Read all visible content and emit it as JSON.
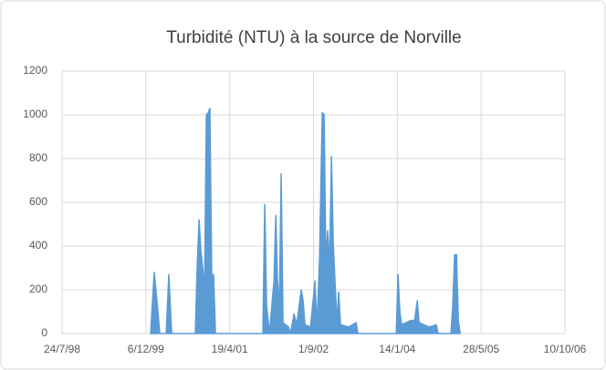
{
  "chart_data": {
    "type": "area",
    "title": "Turbidité (NTU) à la source de Norville",
    "color": "#5b9bd5",
    "grid": true,
    "x": [
      "2000-01-03",
      "2000-01-25",
      "2000-02-10",
      "2000-02-27",
      "2000-04-05",
      "2000-04-21",
      "2000-05-08",
      "2000-09-26",
      "2000-10-07",
      "2000-10-18",
      "2000-10-29",
      "2000-11-09",
      "2000-11-20",
      "2000-12-01",
      "2000-12-12",
      "2000-12-22",
      "2001-01-02",
      "2001-01-13",
      "2001-01-24",
      "2001-11-03",
      "2001-11-14",
      "2001-11-25",
      "2001-12-12",
      "2002-01-08",
      "2002-01-19",
      "2002-01-29",
      "2002-02-09",
      "2002-02-20",
      "2002-03-03",
      "2002-04-05",
      "2002-04-16",
      "2002-05-08",
      "2002-05-24",
      "2002-06-20",
      "2002-07-01",
      "2002-07-12",
      "2002-08-14",
      "2002-09-10",
      "2002-09-21",
      "2002-10-07",
      "2002-10-23",
      "2002-11-03",
      "2002-11-14",
      "2002-11-25",
      "2002-12-06",
      "2002-12-17",
      "2002-12-28",
      "2003-01-08",
      "2003-01-19",
      "2003-01-29",
      "2003-02-09",
      "2003-03-30",
      "2003-05-13",
      "2003-05-24",
      "2004-01-08",
      "2004-01-18",
      "2004-01-29",
      "2004-02-09",
      "2004-04-04",
      "2004-04-26",
      "2004-05-12",
      "2004-05-23",
      "2004-07-22",
      "2004-09-03",
      "2004-09-14",
      "2004-11-29",
      "2004-12-10",
      "2004-12-21",
      "2005-01-01",
      "2005-01-12",
      "2005-01-23"
    ],
    "values": [
      0,
      280,
      150,
      0,
      0,
      270,
      0,
      0,
      300,
      520,
      380,
      300,
      200,
      1000,
      1010,
      1030,
      260,
      270,
      0,
      0,
      590,
      130,
      0,
      240,
      540,
      250,
      100,
      730,
      50,
      30,
      0,
      90,
      40,
      200,
      150,
      40,
      30,
      240,
      20,
      340,
      1010,
      1000,
      330,
      470,
      300,
      810,
      400,
      230,
      50,
      190,
      40,
      30,
      50,
      0,
      0,
      270,
      100,
      40,
      60,
      60,
      150,
      50,
      30,
      40,
      0,
      0,
      130,
      360,
      360,
      60,
      0
    ],
    "xlim": [
      "1998-07-24",
      "2006-10-10"
    ],
    "xticks": [
      {
        "value": "1998-07-24",
        "label": "24/7/98"
      },
      {
        "value": "1999-12-06",
        "label": "6/12/99"
      },
      {
        "value": "2001-04-19",
        "label": "19/4/01"
      },
      {
        "value": "2002-09-01",
        "label": "1/9/02"
      },
      {
        "value": "2004-01-14",
        "label": "14/1/04"
      },
      {
        "value": "2005-05-28",
        "label": "28/5/05"
      },
      {
        "value": "2006-10-10",
        "label": "10/10/06"
      }
    ],
    "ylim": [
      0,
      1200
    ],
    "yticks": [
      0,
      200,
      400,
      600,
      800,
      1000,
      1200
    ]
  }
}
